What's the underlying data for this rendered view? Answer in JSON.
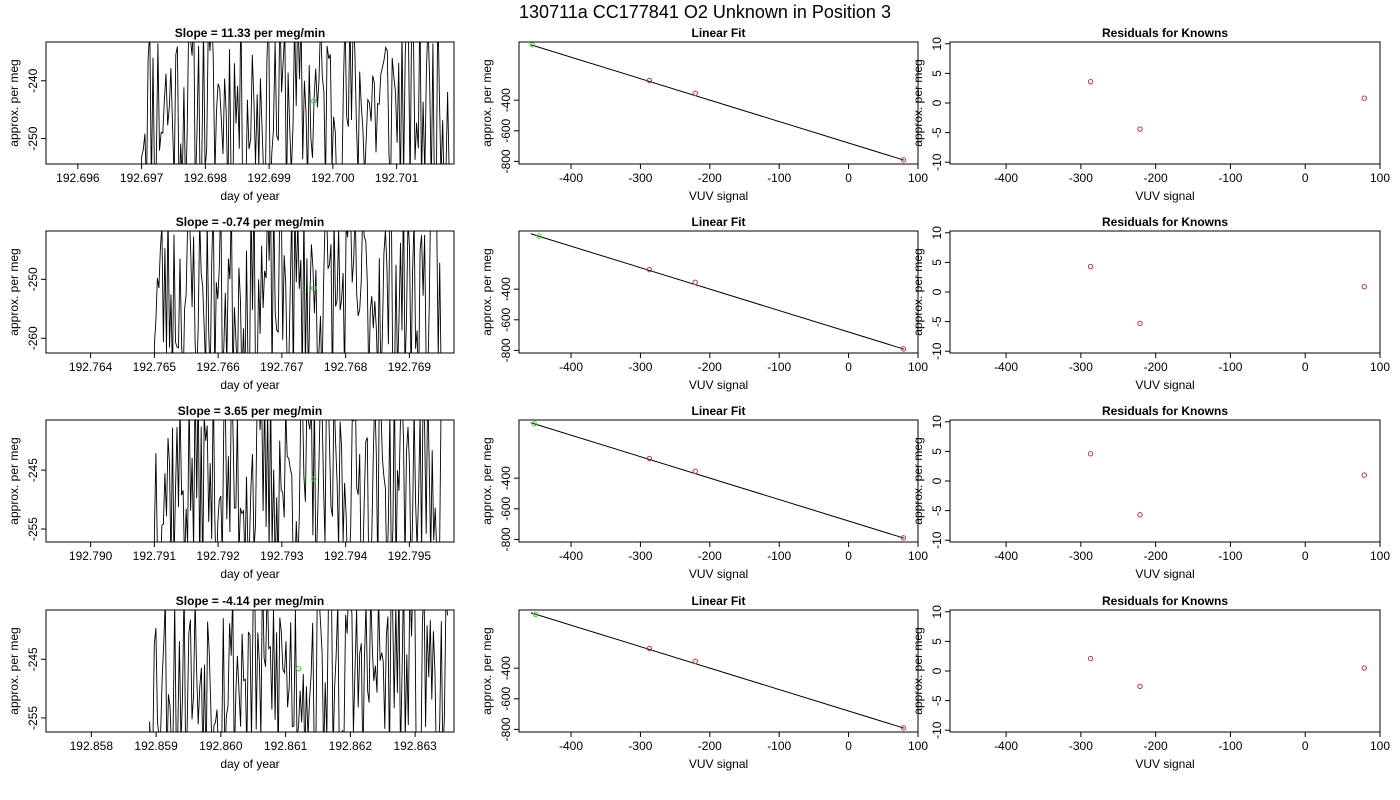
{
  "figure": {
    "title": "130711a     CC177841   O2 Unknown in Position  3"
  },
  "colors": {
    "line": "#000000",
    "known_point": "#c0392b",
    "unknown_point": "#33dd33",
    "axis": "#000000",
    "background": "#ffffff"
  },
  "chart_data": [
    {
      "type": "line",
      "panel": "timeseries-1",
      "title": "Slope =  11.33  per meg/min",
      "xlabel": "day of year",
      "ylabel": "approx. per meg",
      "xlim": [
        192.6955,
        192.7019
      ],
      "ylim": [
        -254.4,
        -233.3
      ],
      "xticks": [
        192.696,
        192.697,
        192.698,
        192.699,
        192.7,
        192.701
      ],
      "xtick_labels": [
        "192.696",
        "192.697",
        "192.698",
        "192.699",
        "192.700",
        "192.701"
      ],
      "yticks": [
        -250,
        -240
      ],
      "ytick_labels": [
        "-250",
        "-240"
      ],
      "start_x": 192.697,
      "end_x": 192.70185,
      "seed": 11,
      "unknown_point": {
        "x": 192.6997,
        "y": -243.5
      }
    },
    {
      "type": "line",
      "panel": "timeseries-2",
      "title": "Slope =  -0.74  per meg/min",
      "xlabel": "day of year",
      "ylabel": "approx. per meg",
      "xlim": [
        192.7633,
        192.7697
      ],
      "ylim": [
        -262.5,
        -241.8
      ],
      "xticks": [
        192.764,
        192.765,
        192.766,
        192.767,
        192.768,
        192.769
      ],
      "xtick_labels": [
        "192.764",
        "192.765",
        "192.766",
        "192.767",
        "192.768",
        "192.769"
      ],
      "yticks": [
        -260,
        -250
      ],
      "ytick_labels": [
        "-260",
        "-250"
      ],
      "start_x": 192.765,
      "end_x": 192.7695,
      "seed": 23,
      "unknown_point": {
        "x": 192.7675,
        "y": -251.5
      }
    },
    {
      "type": "line",
      "panel": "timeseries-3",
      "title": "Slope =  3.65  per meg/min",
      "xlabel": "day of year",
      "ylabel": "approx. per meg",
      "xlim": [
        192.7893,
        192.7957
      ],
      "ylim": [
        -257.2,
        -236.5
      ],
      "xticks": [
        192.79,
        192.791,
        192.792,
        192.793,
        192.794,
        192.795
      ],
      "xtick_labels": [
        "192.790",
        "192.791",
        "192.792",
        "192.793",
        "192.794",
        "192.795"
      ],
      "yticks": [
        -255,
        -245
      ],
      "ytick_labels": [
        "-255",
        "-245"
      ],
      "start_x": 192.791,
      "end_x": 192.7955,
      "seed": 37,
      "unknown_point": {
        "x": 192.7935,
        "y": -246.5
      }
    },
    {
      "type": "line",
      "panel": "timeseries-4",
      "title": "Slope =  -4.14  per meg/min",
      "xlabel": "day of year",
      "ylabel": "approx. per meg",
      "xlim": [
        192.8573,
        192.8636
      ],
      "ylim": [
        -257.4,
        -236.6
      ],
      "xticks": [
        192.858,
        192.859,
        192.86,
        192.861,
        192.862,
        192.863
      ],
      "xtick_labels": [
        "192.858",
        "192.859",
        "192.860",
        "192.861",
        "192.862",
        "192.863"
      ],
      "yticks": [
        -255,
        -245
      ],
      "ytick_labels": [
        "-255",
        "-245"
      ],
      "start_x": 192.8589,
      "end_x": 192.8635,
      "seed": 53,
      "unknown_point": {
        "x": 192.8612,
        "y": -246.6
      }
    },
    {
      "type": "scatter",
      "panel": "fit-1",
      "title": "Linear Fit",
      "xlabel": "VUV signal",
      "ylabel": "approx. per meg",
      "xlim": [
        -475,
        100
      ],
      "ylim": [
        -817,
        -20
      ],
      "xticks": [
        -400,
        -300,
        -200,
        -100,
        0,
        100
      ],
      "xtick_labels": [
        "-400",
        "-300",
        "-200",
        "-100",
        "0",
        "100"
      ],
      "yticks": [
        -800,
        -600,
        -400
      ],
      "ytick_labels": [
        "-800",
        "-600",
        "-400"
      ],
      "fit_line": {
        "x": [
          -458,
          80
        ],
        "y": [
          -38,
          -792
        ]
      },
      "knowns": [
        {
          "x": -287,
          "y": -272
        },
        {
          "x": -221,
          "y": -355
        },
        {
          "x": 79,
          "y": -790
        }
      ],
      "unknown": {
        "x": -456,
        "y": -38
      }
    },
    {
      "type": "scatter",
      "panel": "fit-2",
      "title": "Linear Fit",
      "xlabel": "VUV signal",
      "ylabel": "approx. per meg",
      "xlim": [
        -475,
        100
      ],
      "ylim": [
        -817,
        -20
      ],
      "xticks": [
        -400,
        -300,
        -200,
        -100,
        0,
        100
      ],
      "xtick_labels": [
        "-400",
        "-300",
        "-200",
        "-100",
        "0",
        "100"
      ],
      "yticks": [
        -800,
        -600,
        -400
      ],
      "ytick_labels": [
        "-800",
        "-600",
        "-400"
      ],
      "fit_line": {
        "x": [
          -458,
          80
        ],
        "y": [
          -38,
          -792
        ]
      },
      "knowns": [
        {
          "x": -287,
          "y": -272
        },
        {
          "x": -221,
          "y": -355
        },
        {
          "x": 79,
          "y": -790
        }
      ],
      "unknown": {
        "x": -446,
        "y": -53
      }
    },
    {
      "type": "scatter",
      "panel": "fit-3",
      "title": "Linear Fit",
      "xlabel": "VUV signal",
      "ylabel": "approx. per meg",
      "xlim": [
        -475,
        100
      ],
      "ylim": [
        -817,
        -20
      ],
      "xticks": [
        -400,
        -300,
        -200,
        -100,
        0,
        100
      ],
      "xtick_labels": [
        "-400",
        "-300",
        "-200",
        "-100",
        "0",
        "100"
      ],
      "yticks": [
        -800,
        -600,
        -400
      ],
      "ytick_labels": [
        "-800",
        "-600",
        "-400"
      ],
      "fit_line": {
        "x": [
          -458,
          80
        ],
        "y": [
          -38,
          -792
        ]
      },
      "knowns": [
        {
          "x": -287,
          "y": -272
        },
        {
          "x": -221,
          "y": -355
        },
        {
          "x": 79,
          "y": -790
        }
      ],
      "unknown": {
        "x": -453,
        "y": -44
      }
    },
    {
      "type": "scatter",
      "panel": "fit-4",
      "title": "Linear Fit",
      "xlabel": "VUV signal",
      "ylabel": "approx. per meg",
      "xlim": [
        -475,
        100
      ],
      "ylim": [
        -817,
        -20
      ],
      "xticks": [
        -400,
        -300,
        -200,
        -100,
        0,
        100
      ],
      "xtick_labels": [
        "-400",
        "-300",
        "-200",
        "-100",
        "0",
        "100"
      ],
      "yticks": [
        -800,
        -600,
        -400
      ],
      "ytick_labels": [
        "-800",
        "-600",
        "-400"
      ],
      "fit_line": {
        "x": [
          -458,
          80
        ],
        "y": [
          -38,
          -792
        ]
      },
      "knowns": [
        {
          "x": -287,
          "y": -272
        },
        {
          "x": -221,
          "y": -355
        },
        {
          "x": 79,
          "y": -790
        }
      ],
      "unknown": {
        "x": -451,
        "y": -48
      }
    },
    {
      "type": "scatter",
      "panel": "residuals-1",
      "title": "Residuals for Knowns",
      "xlabel": "VUV signal",
      "ylabel": "approx. per meg",
      "xlim": [
        -475,
        100
      ],
      "ylim": [
        -10.3,
        10.3
      ],
      "xticks": [
        -400,
        -300,
        -200,
        -100,
        0,
        100
      ],
      "xtick_labels": [
        "-400",
        "-300",
        "-200",
        "-100",
        "0",
        "100"
      ],
      "yticks": [
        -10,
        -5,
        0,
        5,
        10
      ],
      "ytick_labels": [
        "-10",
        "-5",
        "0",
        "5",
        "10"
      ],
      "points": [
        {
          "x": -287,
          "y": 3.6
        },
        {
          "x": -221,
          "y": -4.4
        },
        {
          "x": 79,
          "y": 0.8
        }
      ]
    },
    {
      "type": "scatter",
      "panel": "residuals-2",
      "title": "Residuals for Knowns",
      "xlabel": "VUV signal",
      "ylabel": "approx. per meg",
      "xlim": [
        -475,
        100
      ],
      "ylim": [
        -10.3,
        10.3
      ],
      "xticks": [
        -400,
        -300,
        -200,
        -100,
        0,
        100
      ],
      "xtick_labels": [
        "-400",
        "-300",
        "-200",
        "-100",
        "0",
        "100"
      ],
      "yticks": [
        -10,
        -5,
        0,
        5,
        10
      ],
      "ytick_labels": [
        "-10",
        "-5",
        "0",
        "5",
        "10"
      ],
      "points": [
        {
          "x": -287,
          "y": 4.3
        },
        {
          "x": -221,
          "y": -5.3
        },
        {
          "x": 79,
          "y": 0.9
        }
      ]
    },
    {
      "type": "scatter",
      "panel": "residuals-3",
      "title": "Residuals for Knowns",
      "xlabel": "VUV signal",
      "ylabel": "approx. per meg",
      "xlim": [
        -475,
        100
      ],
      "ylim": [
        -10.3,
        10.3
      ],
      "xticks": [
        -400,
        -300,
        -200,
        -100,
        0,
        100
      ],
      "xtick_labels": [
        "-400",
        "-300",
        "-200",
        "-100",
        "0",
        "100"
      ],
      "yticks": [
        -10,
        -5,
        0,
        5,
        10
      ],
      "ytick_labels": [
        "-10",
        "-5",
        "0",
        "5",
        "10"
      ],
      "points": [
        {
          "x": -287,
          "y": 4.6
        },
        {
          "x": -221,
          "y": -5.7
        },
        {
          "x": 79,
          "y": 1.0
        }
      ]
    },
    {
      "type": "scatter",
      "panel": "residuals-4",
      "title": "Residuals for Knowns",
      "xlabel": "VUV signal",
      "ylabel": "approx. per meg",
      "xlim": [
        -475,
        100
      ],
      "ylim": [
        -10.3,
        10.3
      ],
      "xticks": [
        -400,
        -300,
        -200,
        -100,
        0,
        100
      ],
      "xtick_labels": [
        "-400",
        "-300",
        "-200",
        "-100",
        "0",
        "100"
      ],
      "yticks": [
        -10,
        -5,
        0,
        5,
        10
      ],
      "ytick_labels": [
        "-10",
        "-5",
        "0",
        "5",
        "10"
      ],
      "points": [
        {
          "x": -287,
          "y": 2.1
        },
        {
          "x": -221,
          "y": -2.6
        },
        {
          "x": 79,
          "y": 0.5
        }
      ]
    }
  ]
}
